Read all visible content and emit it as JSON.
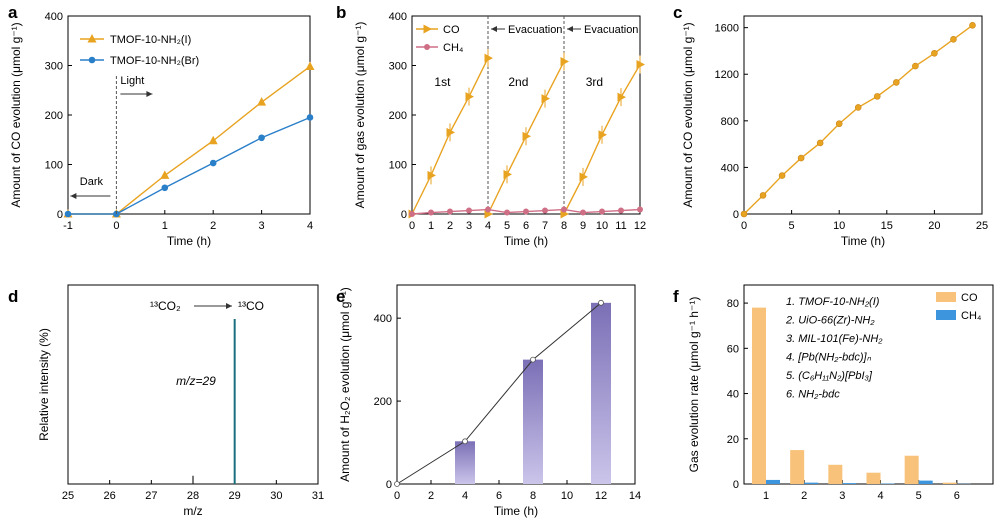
{
  "colors": {
    "orange": "#e8a321",
    "blue": "#2a7fc9",
    "pink": "#cf6f86",
    "purple": "#7b6fb6",
    "bar_orange": "#f9c27a",
    "bar_blue": "#3d96dd",
    "dark_red": "#a83232",
    "teal": "#1a6f7f"
  },
  "chart_data": [
    {
      "id": "a",
      "type": "line",
      "panel_label": "a",
      "xlabel": "Time (h)",
      "ylabel": "Amount of CO evolution  (μmol g⁻¹)",
      "xlim": [
        -1,
        4
      ],
      "ylim": [
        0,
        400
      ],
      "xticks": [
        "-1",
        "0",
        "1",
        "2",
        "3",
        "4"
      ],
      "yticks": [
        "0",
        "100",
        "200",
        "300",
        "400"
      ],
      "x": [
        -1,
        0,
        1,
        2,
        3,
        4
      ],
      "series": [
        {
          "name": "TMOF-10-NH₂(I)",
          "values": [
            0,
            0,
            78,
            148,
            226,
            298
          ]
        },
        {
          "name": "TMOF-10-NH₂(Br)",
          "values": [
            0,
            0,
            53,
            103,
            154,
            195
          ]
        }
      ],
      "annotations": {
        "light": "Light",
        "dark": "Dark"
      }
    },
    {
      "id": "b",
      "type": "line",
      "panel_label": "b",
      "xlabel": "Time (h)",
      "ylabel": "Amount of gas evolution  (μmol g⁻¹)",
      "xlim": [
        0,
        12
      ],
      "ylim": [
        0,
        400
      ],
      "xticks": [
        "0",
        "1",
        "2",
        "3",
        "4",
        "5",
        "6",
        "7",
        "8",
        "9",
        "10",
        "11",
        "12"
      ],
      "yticks": [
        "0",
        "100",
        "200",
        "300",
        "400"
      ],
      "series": [
        {
          "name": "CO",
          "segments": [
            {
              "x": [
                0,
                1,
                2,
                3,
                4
              ],
              "values": [
                0,
                78,
                165,
                237,
                315
              ]
            },
            {
              "x": [
                4,
                5,
                6,
                7,
                8
              ],
              "values": [
                0,
                80,
                157,
                233,
                308
              ]
            },
            {
              "x": [
                8,
                9,
                10,
                11,
                12
              ],
              "values": [
                0,
                75,
                160,
                236,
                302
              ]
            }
          ]
        },
        {
          "name": "CH₄",
          "x": [
            0,
            1,
            2,
            3,
            4,
            5,
            6,
            7,
            8,
            9,
            10,
            11,
            12
          ],
          "values": [
            0,
            3,
            5,
            7,
            9,
            3,
            5,
            7,
            9,
            3,
            5,
            7,
            9
          ]
        }
      ],
      "annotations": {
        "evac1": "Evacuation",
        "evac2": "Evacuation",
        "cycle1": "1st",
        "cycle2": "2nd",
        "cycle3": "3rd"
      }
    },
    {
      "id": "c",
      "type": "line",
      "panel_label": "c",
      "xlabel": "Time (h)",
      "ylabel": "Amount of CO evolution  (μmol g⁻¹)",
      "xlim": [
        0,
        25
      ],
      "ylim": [
        0,
        1700
      ],
      "xticks": [
        "0",
        "5",
        "10",
        "15",
        "20",
        "25"
      ],
      "yticks": [
        "0",
        "400",
        "800",
        "1200",
        "1600"
      ],
      "series": [
        {
          "name": "CO",
          "x": [
            0,
            2,
            4,
            6,
            8,
            10,
            12,
            14,
            16,
            18,
            20,
            22,
            24
          ],
          "values": [
            0,
            160,
            330,
            480,
            610,
            775,
            915,
            1010,
            1130,
            1270,
            1380,
            1500,
            1620
          ]
        }
      ]
    },
    {
      "id": "d",
      "type": "bar",
      "panel_label": "d",
      "xlabel": "m/z",
      "ylabel": "Relative intensity (%)",
      "xlim": [
        25,
        31
      ],
      "xticks": [
        "25",
        "26",
        "27",
        "28",
        "29",
        "30",
        "31"
      ],
      "x": [
        28,
        29
      ],
      "values": [
        0.05,
        1.0
      ],
      "annotations": {
        "reaction_left": "¹³CO₂",
        "reaction_right": "¹³CO",
        "peak": "m/z=29"
      }
    },
    {
      "id": "e",
      "type": "bar",
      "panel_label": "e",
      "xlabel": "Time (h)",
      "ylabel": "Amount of H₂O₂ evolution  (μmol g⁻¹)",
      "xlim": [
        0,
        14
      ],
      "ylim": [
        0,
        480
      ],
      "xticks": [
        "0",
        "2",
        "4",
        "6",
        "8",
        "10",
        "12",
        "14"
      ],
      "yticks": [
        "0",
        "200",
        "400"
      ],
      "x": [
        4,
        8,
        12
      ],
      "values": [
        103,
        300,
        437
      ],
      "line": {
        "x": [
          0,
          4,
          8,
          12
        ],
        "values": [
          0,
          103,
          300,
          437
        ]
      }
    },
    {
      "id": "f",
      "type": "bar",
      "panel_label": "f",
      "xlabel": "",
      "ylabel": "Gas evolution rate  (μmol g⁻¹ h⁻¹)",
      "ylim": [
        0,
        88
      ],
      "categories": [
        "1",
        "2",
        "3",
        "4",
        "5",
        "6"
      ],
      "yticks": [
        "0",
        "20",
        "40",
        "60",
        "80"
      ],
      "series": [
        {
          "name": "CO",
          "values": [
            78,
            15,
            8.5,
            5,
            12.5,
            0.6
          ]
        },
        {
          "name": "CH₄",
          "values": [
            1.8,
            0.6,
            0.4,
            0.2,
            1.5,
            0.1
          ]
        }
      ],
      "materials": [
        "1. TMOF-10-NH₂(I)",
        "2. UiO-66(Zr)-NH₂",
        "3. MIL-101(Fe)-NH₂",
        "4. [Pb(NH₂-bdc)]ₙ",
        "5. (C₆H₁₁N₂)[PbI₃]",
        "6. NH₂-bdc"
      ]
    }
  ]
}
